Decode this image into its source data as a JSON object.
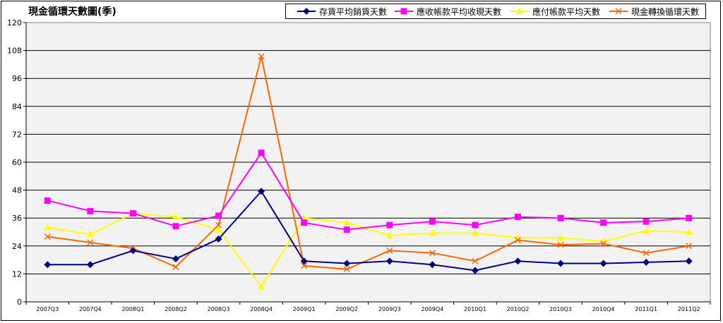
{
  "chart_data": {
    "type": "line",
    "title": "現金循環天數圖(季)",
    "categories": [
      "2007Q3",
      "2007Q4",
      "2008Q1",
      "2008Q2",
      "2008Q3",
      "2008Q4",
      "2009Q1",
      "2009Q2",
      "2009Q3",
      "2009Q4",
      "2010Q1",
      "2010Q2",
      "2010Q3",
      "2010Q4",
      "2011Q1",
      "2011Q2"
    ],
    "ylim": [
      0,
      120
    ],
    "yticks": [
      0,
      12,
      24,
      36,
      48,
      60,
      72,
      84,
      96,
      108,
      120
    ],
    "grid": true,
    "legend_position": "top-right",
    "plot_background": "#f2f2f2",
    "series": [
      {
        "name": "存貨平均銷貨天數",
        "color": "#000080",
        "marker": "diamond",
        "values": [
          16,
          16,
          22,
          18.5,
          27,
          47.5,
          17.5,
          16.5,
          17.5,
          16,
          13.5,
          17.5,
          16.5,
          16.5,
          17,
          17.5
        ]
      },
      {
        "name": "應收帳款平均收現天數",
        "color": "#ff00ff",
        "marker": "square",
        "values": [
          43.5,
          39,
          38,
          32.5,
          37,
          64,
          34,
          31,
          33,
          34.5,
          33,
          36.5,
          36,
          34,
          34.5,
          36
        ]
      },
      {
        "name": "應付帳款平均天數",
        "color": "#ffff00",
        "marker": "triangle",
        "values": [
          32,
          29,
          38,
          36.5,
          31,
          6.5,
          36,
          34,
          28.5,
          29.5,
          29.5,
          27.5,
          27.5,
          26,
          30.5,
          30
        ]
      },
      {
        "name": "現金轉換循環天數",
        "color": "#ff6600",
        "marker": "x",
        "values": [
          28,
          25.5,
          23,
          15,
          33,
          105.5,
          15.5,
          14,
          22,
          21,
          17.5,
          26.5,
          24.5,
          25,
          21,
          24
        ]
      }
    ]
  }
}
